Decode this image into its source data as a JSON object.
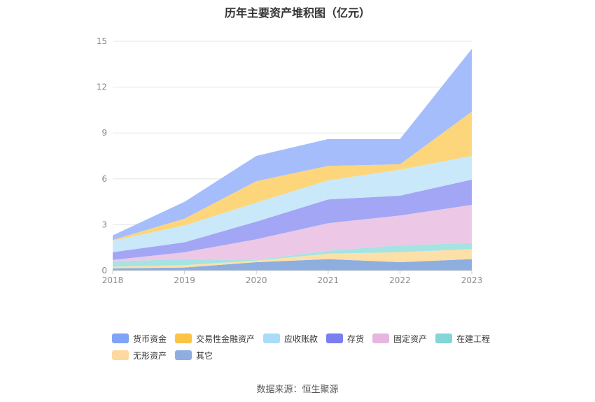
{
  "chart_data": {
    "type": "area",
    "stacked": true,
    "title": "历年主要资产堆积图（亿元）",
    "source": "数据来源：恒生聚源",
    "x": [
      "2018",
      "2019",
      "2020",
      "2021",
      "2022",
      "2023"
    ],
    "yticks": [
      "0",
      "3",
      "6",
      "9",
      "12",
      "15"
    ],
    "ylim": [
      0,
      15
    ],
    "legend_position": "bottom",
    "series": [
      {
        "name": "其它",
        "color": "#8eaee0",
        "values": [
          0.15,
          0.2,
          0.55,
          0.75,
          0.55,
          0.75
        ]
      },
      {
        "name": "无形资产",
        "color": "#fde0a8",
        "values": [
          0.1,
          0.15,
          0.1,
          0.35,
          0.65,
          0.65
        ]
      },
      {
        "name": "在建工程",
        "color": "#a6e3e3",
        "values": [
          0.35,
          0.4,
          0.05,
          0.2,
          0.45,
          0.4
        ]
      },
      {
        "name": "固定资产",
        "color": "#ecc8e6",
        "values": [
          0.1,
          0.45,
          1.35,
          1.8,
          1.95,
          2.5
        ]
      },
      {
        "name": "存货",
        "color": "#a2a6f5",
        "values": [
          0.5,
          0.65,
          1.15,
          1.55,
          1.3,
          1.65
        ]
      },
      {
        "name": "应收账款",
        "color": "#c9e8fa",
        "values": [
          0.75,
          1.1,
          1.25,
          1.25,
          1.7,
          1.55
        ]
      },
      {
        "name": "交易性金融资产",
        "color": "#fdd67c",
        "values": [
          0.05,
          0.45,
          1.4,
          0.95,
          0.35,
          2.9
        ]
      },
      {
        "name": "货币资金",
        "color": "#a6bdfb",
        "values": [
          0.3,
          1.1,
          1.65,
          1.75,
          1.65,
          4.1
        ]
      }
    ],
    "legend": [
      {
        "name": "货币资金",
        "color": "#7fa3f7"
      },
      {
        "name": "交易性金融资产",
        "color": "#fcc445"
      },
      {
        "name": "应收账款",
        "color": "#a9dcf8"
      },
      {
        "name": "存货",
        "color": "#7a7ef0"
      },
      {
        "name": "固定资产",
        "color": "#e6b6df"
      },
      {
        "name": "在建工程",
        "color": "#84d5d5"
      },
      {
        "name": "无形资产",
        "color": "#fdd8a0"
      },
      {
        "name": "其它",
        "color": "#8eaee0"
      }
    ]
  }
}
